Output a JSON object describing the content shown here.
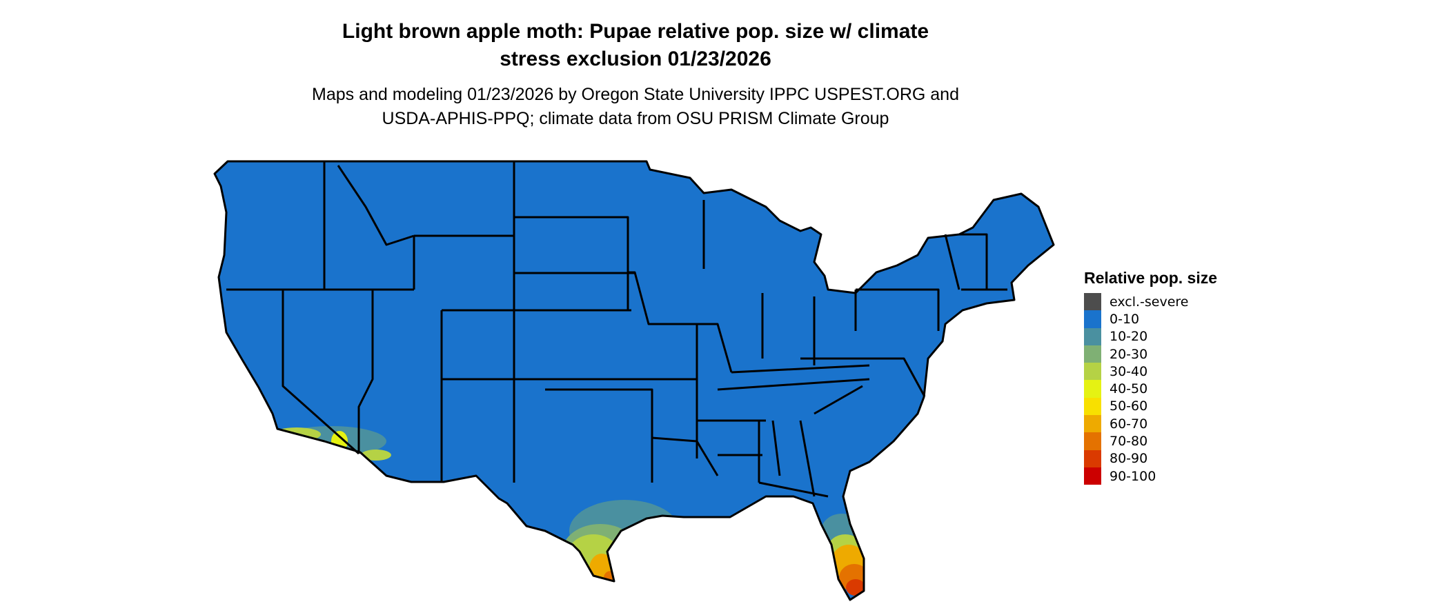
{
  "title": {
    "line1": "Light brown apple moth: Pupae relative pop. size w/ climate",
    "line2": "stress exclusion 01/23/2026"
  },
  "subtitle": {
    "line1": "Maps and modeling 01/23/2026 by Oregon State University IPPC USPEST.ORG and",
    "line2": "USDA-APHIS-PPQ; climate data from OSU PRISM Climate Group"
  },
  "map": {
    "base_color": "#1a73cc",
    "border_color": "#000000"
  },
  "legend": {
    "title": "Relative pop. size",
    "items": [
      {
        "label": "excl.-severe",
        "color": "#4d4d4d"
      },
      {
        "label": "0-10",
        "color": "#1a73cc"
      },
      {
        "label": "10-20",
        "color": "#4a90a0"
      },
      {
        "label": "20-30",
        "color": "#7fb074"
      },
      {
        "label": "30-40",
        "color": "#b5d245"
      },
      {
        "label": "40-50",
        "color": "#e5f213"
      },
      {
        "label": "50-60",
        "color": "#f8e000"
      },
      {
        "label": "60-70",
        "color": "#eeaa00"
      },
      {
        "label": "70-80",
        "color": "#e47200"
      },
      {
        "label": "80-90",
        "color": "#da3a00"
      },
      {
        "label": "90-100",
        "color": "#cc0000"
      }
    ]
  }
}
